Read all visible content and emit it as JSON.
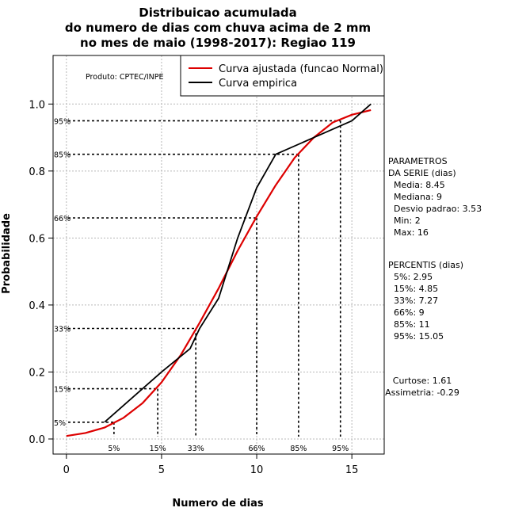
{
  "chart_data": {
    "type": "line",
    "title_lines": [
      "Distribuicao acumulada",
      "do numero de dias com chuva acima de 2 mm",
      "no mes de maio (1998-2017): Regiao 119"
    ],
    "xlabel": "Numero de dias",
    "ylabel": "Probabilidade",
    "xlim": [
      -0.7,
      16.7
    ],
    "ylim": [
      -0.045,
      1.145
    ],
    "xticks": [
      0,
      5,
      10,
      15
    ],
    "yticks": [
      0.0,
      0.2,
      0.4,
      0.6,
      0.8,
      1.0
    ],
    "ytick_labels": [
      "0.0",
      "0.2",
      "0.4",
      "0.6",
      "0.8",
      "1.0"
    ],
    "grid": true,
    "producer": "Produto: CPTEC/INPE",
    "legend": {
      "position": "top-right",
      "entries": [
        {
          "label": "Curva ajustada (funcao Normal)",
          "color": "#dd0000"
        },
        {
          "label": "Curva empirica",
          "color": "#000000"
        }
      ]
    },
    "series": [
      {
        "name": "Curva ajustada (funcao Normal)",
        "color": "#dd0000",
        "x": [
          0,
          1,
          2,
          3,
          4,
          5,
          6,
          7,
          8,
          9,
          10,
          11,
          12,
          13,
          14,
          15,
          16
        ],
        "y": [
          0.009,
          0.018,
          0.034,
          0.063,
          0.107,
          0.169,
          0.25,
          0.347,
          0.45,
          0.562,
          0.664,
          0.758,
          0.84,
          0.9,
          0.945,
          0.968,
          0.982
        ]
      },
      {
        "name": "Curva empirica",
        "color": "#000000",
        "x": [
          2,
          5,
          6.5,
          7,
          8,
          9,
          10,
          11,
          13,
          15,
          16
        ],
        "y": [
          0.05,
          0.2,
          0.27,
          0.33,
          0.42,
          0.6,
          0.75,
          0.85,
          0.9,
          0.95,
          1.0
        ]
      }
    ],
    "percentile_markers": [
      {
        "label": "5%",
        "x": 2.5,
        "y": 0.05
      },
      {
        "label": "15%",
        "x": 4.8,
        "y": 0.15
      },
      {
        "label": "33%",
        "x": 6.8,
        "y": 0.33
      },
      {
        "label": "66%",
        "x": 10.0,
        "y": 0.66
      },
      {
        "label": "85%",
        "x": 12.2,
        "y": 0.85
      },
      {
        "label": "95%",
        "x": 14.4,
        "y": 0.95
      }
    ],
    "side_text": {
      "params_lines": [
        "PARAMETROS",
        "DA SERIE (dias)",
        "  Media: 8.45",
        "  Mediana: 9",
        "  Desvio padrao: 3.53",
        "  Min: 2",
        "  Max: 16"
      ],
      "percentis_lines": [
        "PERCENTIS (dias)",
        "  5%: 2.95",
        "  15%: 4.85",
        "  33%: 7.27",
        "  66%: 9",
        "  85%: 11",
        "  95%: 15.05"
      ],
      "curtose": "Curtose: 1.61",
      "assimetria": "Assimetria: -0.29"
    }
  }
}
